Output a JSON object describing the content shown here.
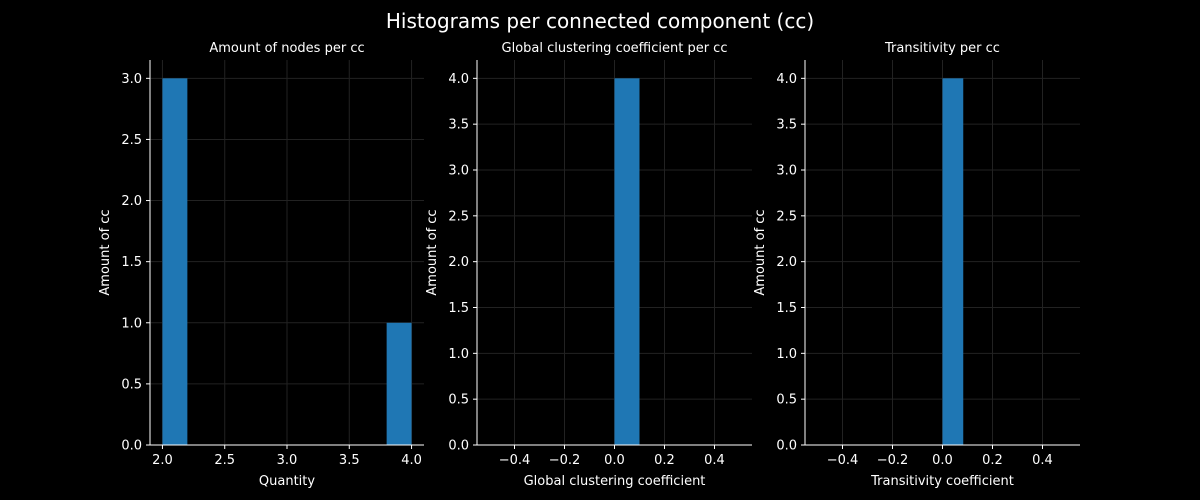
{
  "figure": {
    "suptitle": "Histograms per connected component (cc)",
    "background": "#000000",
    "bar_color": "#1f77b4"
  },
  "chart_data": [
    {
      "type": "bar",
      "title": "Amount of nodes per cc",
      "xlabel": "Quantity",
      "ylabel": "Amount of cc",
      "xlim": [
        1.9,
        4.1
      ],
      "ylim": [
        0,
        3.15
      ],
      "xticks": [
        2.0,
        2.5,
        3.0,
        3.5,
        4.0
      ],
      "xtick_labels": [
        "2.0",
        "2.5",
        "3.0",
        "3.5",
        "4.0"
      ],
      "yticks": [
        0.0,
        0.5,
        1.0,
        1.5,
        2.0,
        2.5,
        3.0
      ],
      "ytick_labels": [
        "0.0",
        "0.5",
        "1.0",
        "1.5",
        "2.0",
        "2.5",
        "3.0"
      ],
      "bins": [
        {
          "start": 2.0,
          "end": 2.2,
          "count": 3
        },
        {
          "start": 3.8,
          "end": 4.0,
          "count": 1
        }
      ],
      "grid": true
    },
    {
      "type": "bar",
      "title": "Global clustering coefficient per cc",
      "xlabel": "Global clustering coefficient",
      "ylabel": "Amount of cc",
      "xlim": [
        -0.55,
        0.55
      ],
      "ylim": [
        0,
        4.2
      ],
      "xticks": [
        -0.4,
        -0.2,
        0.0,
        0.2,
        0.4
      ],
      "xtick_labels": [
        "−0.4",
        "−0.2",
        "0.0",
        "0.2",
        "0.4"
      ],
      "yticks": [
        0.0,
        0.5,
        1.0,
        1.5,
        2.0,
        2.5,
        3.0,
        3.5,
        4.0
      ],
      "ytick_labels": [
        "0.0",
        "0.5",
        "1.0",
        "1.5",
        "2.0",
        "2.5",
        "3.0",
        "3.5",
        "4.0"
      ],
      "bins": [
        {
          "start": 0.0,
          "end": 0.1,
          "count": 4
        }
      ],
      "grid": true
    },
    {
      "type": "bar",
      "title": "Transitivity per cc",
      "xlabel": "Transitivity coefficient",
      "ylabel": "Amount of cc",
      "xlim": [
        -0.55,
        0.55
      ],
      "ylim": [
        0,
        4.2
      ],
      "xticks": [
        -0.4,
        -0.2,
        0.0,
        0.2,
        0.4
      ],
      "xtick_labels": [
        "−0.4",
        "−0.2",
        "0.0",
        "0.2",
        "0.4"
      ],
      "yticks": [
        0.0,
        0.5,
        1.0,
        1.5,
        2.0,
        2.5,
        3.0,
        3.5,
        4.0
      ],
      "ytick_labels": [
        "0.0",
        "0.5",
        "1.0",
        "1.5",
        "2.0",
        "2.5",
        "3.0",
        "3.5",
        "4.0"
      ],
      "bins": [
        {
          "start": 0.0,
          "end": 0.083,
          "count": 4
        }
      ],
      "grid": true
    }
  ]
}
